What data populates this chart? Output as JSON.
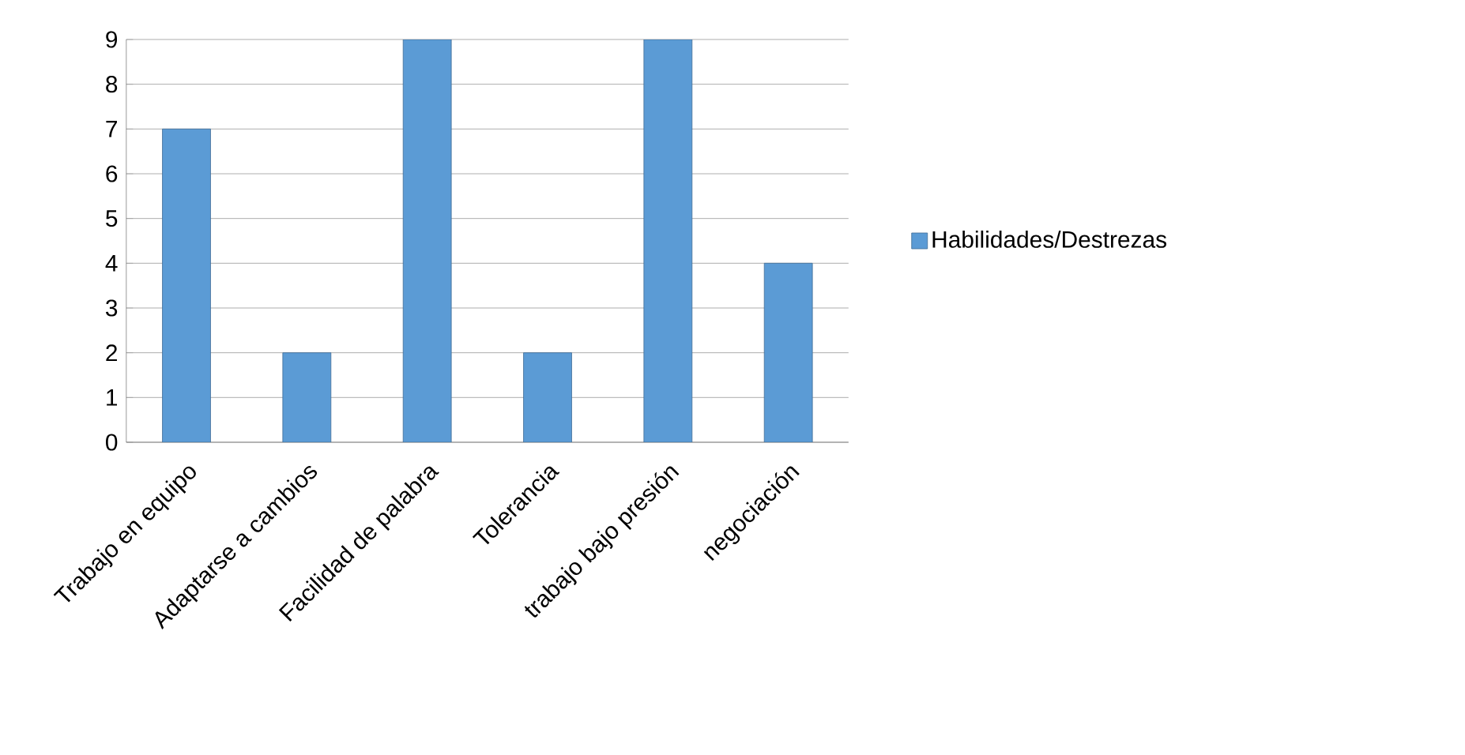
{
  "chart_data": {
    "type": "bar",
    "categories": [
      "Trabajo en equipo",
      "Adaptarse a cambios",
      "Facilidad de palabra",
      "Tolerancia",
      "trabajo bajo presión",
      "negociación"
    ],
    "series": [
      {
        "name": "Habilidades/Destrezas",
        "color": "#5b9bd5",
        "values": [
          7,
          2,
          9,
          2,
          9,
          4
        ]
      }
    ],
    "ylim": [
      0,
      9
    ],
    "yticks": [
      0,
      1,
      2,
      3,
      4,
      5,
      6,
      7,
      8,
      9
    ],
    "grid": "y",
    "legend": "right"
  }
}
